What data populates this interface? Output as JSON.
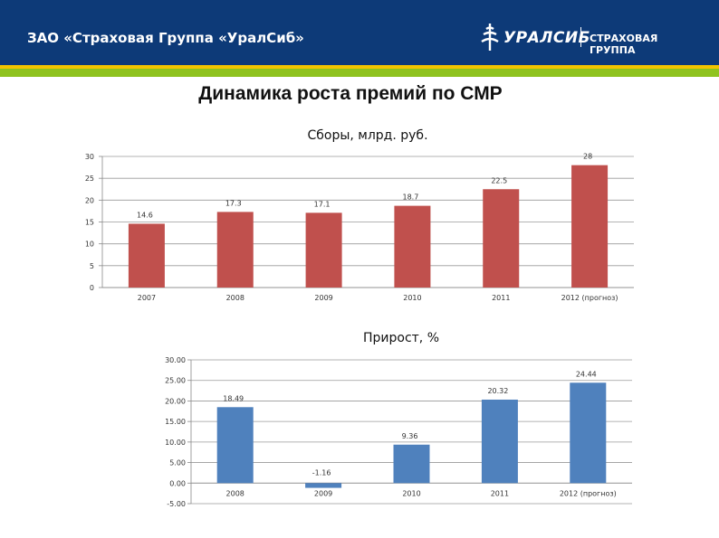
{
  "header": {
    "company": "ЗАО «Страховая Группа  «УралСиб»",
    "logo_name": "УРАЛСИБ",
    "logo_group": "СТРАХОВАЯ ГРУППА",
    "colors": {
      "band": "#0d3a78",
      "yellow": "#f2c500",
      "green": "#8fc31f"
    }
  },
  "page_title": "Динамика роста премий по СМР",
  "chart_data": [
    {
      "type": "bar",
      "title": "Сборы, млрд. руб.",
      "categories": [
        "2007",
        "2008",
        "2009",
        "2010",
        "2011",
        "2012 (прогноз)"
      ],
      "values": [
        14.6,
        17.3,
        17.1,
        18.7,
        22.5,
        28
      ],
      "value_labels": [
        "14.6",
        "17.3",
        "17.1",
        "18.7",
        "22.5",
        "28"
      ],
      "ylim": [
        0,
        30
      ],
      "yticks": [
        "0",
        "5",
        "10",
        "15",
        "20",
        "25",
        "30"
      ],
      "grid": true,
      "color": "#c0504d"
    },
    {
      "type": "bar",
      "title": "Прирост, %",
      "categories": [
        "2008",
        "2009",
        "2010",
        "2011",
        "2012 (прогноз)"
      ],
      "values": [
        18.49,
        -1.16,
        9.36,
        20.32,
        24.44
      ],
      "value_labels": [
        "18.49",
        "-1.16",
        "9.36",
        "20.32",
        "24.44"
      ],
      "ylim": [
        -5,
        30
      ],
      "yticks": [
        "-5.00",
        "0.00",
        "5.00",
        "10.00",
        "15.00",
        "20.00",
        "25.00",
        "30.00"
      ],
      "grid": true,
      "color": "#4f81bd"
    }
  ]
}
